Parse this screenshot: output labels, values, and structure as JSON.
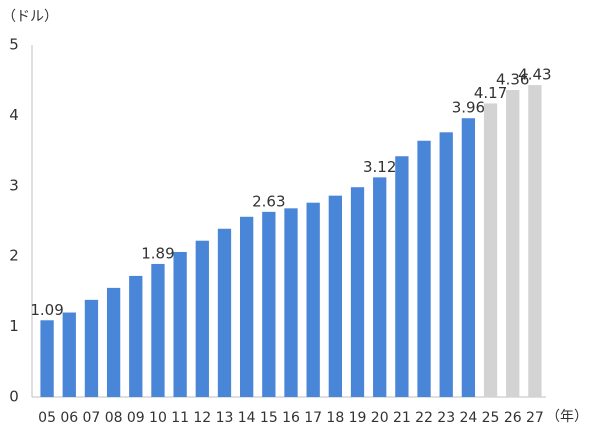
{
  "chart_data": {
    "type": "bar",
    "y_axis_label": "（ドル）",
    "x_axis_label": "（年）",
    "categories": [
      "05",
      "06",
      "07",
      "08",
      "09",
      "10",
      "11",
      "12",
      "13",
      "14",
      "15",
      "16",
      "17",
      "18",
      "19",
      "20",
      "21",
      "22",
      "23",
      "24",
      "25",
      "26",
      "27"
    ],
    "values": [
      1.09,
      1.2,
      1.38,
      1.55,
      1.72,
      1.89,
      2.06,
      2.22,
      2.39,
      2.56,
      2.63,
      2.68,
      2.76,
      2.86,
      2.98,
      3.12,
      3.42,
      3.64,
      3.76,
      3.96,
      4.17,
      4.36,
      4.43
    ],
    "value_labels": [
      "1.09",
      null,
      null,
      null,
      null,
      "1.89",
      null,
      null,
      null,
      null,
      "2.63",
      null,
      null,
      null,
      null,
      "3.12",
      null,
      null,
      null,
      "3.96",
      "4.17",
      "4.36",
      "4.43"
    ],
    "colors": [
      "#4a86d8",
      "#4a86d8",
      "#4a86d8",
      "#4a86d8",
      "#4a86d8",
      "#4a86d8",
      "#4a86d8",
      "#4a86d8",
      "#4a86d8",
      "#4a86d8",
      "#4a86d8",
      "#4a86d8",
      "#4a86d8",
      "#4a86d8",
      "#4a86d8",
      "#4a86d8",
      "#4a86d8",
      "#4a86d8",
      "#4a86d8",
      "#4a86d8",
      "#d3d3d3",
      "#d3d3d3",
      "#d3d3d3"
    ],
    "ylim": [
      0,
      5
    ],
    "yticks": [
      0,
      1,
      2,
      3,
      4,
      5
    ],
    "grid": false
  }
}
